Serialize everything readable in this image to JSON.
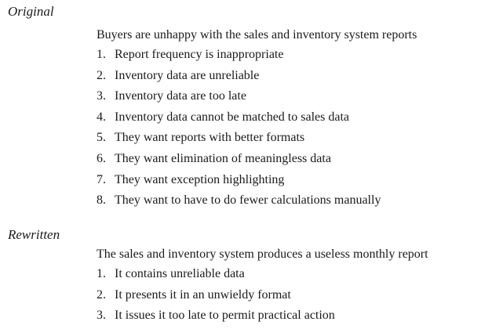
{
  "original": {
    "heading": "Original",
    "intro": "Buyers are unhappy with the sales and inventory system reports",
    "items": [
      {
        "num": "1.",
        "text": "Report frequency is inappropriate"
      },
      {
        "num": "2.",
        "text": "Inventory data are unreliable"
      },
      {
        "num": "3.",
        "text": "Inventory data are too late"
      },
      {
        "num": "4.",
        "text": "Inventory data cannot be matched to sales data"
      },
      {
        "num": "5.",
        "text": "They want reports with better formats"
      },
      {
        "num": "6.",
        "text": "They want elimination of meaningless data"
      },
      {
        "num": "7.",
        "text": "They want exception highlighting"
      },
      {
        "num": "8.",
        "text": "They want to have to do fewer calculations manually"
      }
    ]
  },
  "rewritten": {
    "heading": "Rewritten",
    "intro": "The sales and inventory system produces a useless monthly report",
    "items": [
      {
        "num": "1.",
        "text": "It contains unreliable data"
      },
      {
        "num": "2.",
        "text": "It presents it in an unwieldy format"
      },
      {
        "num": "3.",
        "text": "It issues it too late to permit practical action"
      }
    ]
  }
}
